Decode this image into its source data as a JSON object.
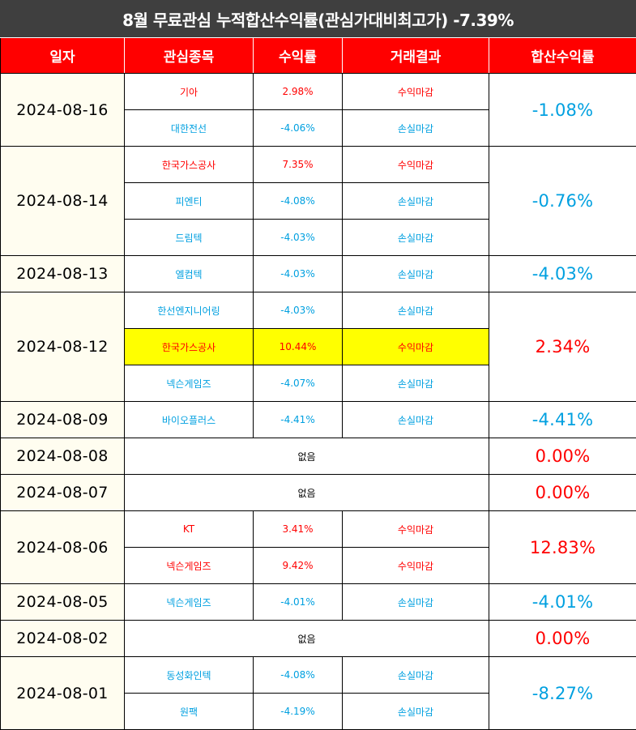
{
  "title": "8월 무료관심 누적합산수익률(관심가대비최고가) -7.39%",
  "headers": [
    "일자",
    "관심종목",
    "수익률",
    "거래결과",
    "합산수익률"
  ],
  "colors": {
    "profit": "#ff0000",
    "loss": "#00a0e0",
    "header_bg": "#ff0000",
    "title_bg": "#3f3f3f",
    "highlight": "#ffff00"
  },
  "groups": [
    {
      "date": "2024-08-16",
      "total": "-1.08%",
      "total_color": "blue",
      "rows": [
        {
          "stock": "기아",
          "rate": "2.98%",
          "result": "수익마감",
          "color": "red"
        },
        {
          "stock": "대한전선",
          "rate": "-4.06%",
          "result": "손실마감",
          "color": "blue"
        }
      ]
    },
    {
      "date": "2024-08-14",
      "total": "-0.76%",
      "total_color": "blue",
      "rows": [
        {
          "stock": "한국가스공사",
          "rate": "7.35%",
          "result": "수익마감",
          "color": "red"
        },
        {
          "stock": "피엔티",
          "rate": "-4.08%",
          "result": "손실마감",
          "color": "blue"
        },
        {
          "stock": "드림텍",
          "rate": "-4.03%",
          "result": "손실마감",
          "color": "blue"
        }
      ]
    },
    {
      "date": "2024-08-13",
      "total": "-4.03%",
      "total_color": "blue",
      "rows": [
        {
          "stock": "엘컴텍",
          "rate": "-4.03%",
          "result": "손실마감",
          "color": "blue"
        }
      ]
    },
    {
      "date": "2024-08-12",
      "total": "2.34%",
      "total_color": "red",
      "rows": [
        {
          "stock": "한선엔지니어링",
          "rate": "-4.03%",
          "result": "손실마감",
          "color": "blue"
        },
        {
          "stock": "한국가스공사",
          "rate": "10.44%",
          "result": "수익마감",
          "color": "red",
          "highlight": true
        },
        {
          "stock": "넥슨게임즈",
          "rate": "-4.07%",
          "result": "손실마감",
          "color": "blue"
        }
      ]
    },
    {
      "date": "2024-08-09",
      "total": "-4.41%",
      "total_color": "blue",
      "rows": [
        {
          "stock": "바이오플러스",
          "rate": "-4.41%",
          "result": "손실마감",
          "color": "blue"
        }
      ]
    },
    {
      "date": "2024-08-08",
      "total": "0.00%",
      "total_color": "red",
      "none": "없음",
      "rows": []
    },
    {
      "date": "2024-08-07",
      "total": "0.00%",
      "total_color": "red",
      "none": "없음",
      "rows": []
    },
    {
      "date": "2024-08-06",
      "total": "12.83%",
      "total_color": "red",
      "rows": [
        {
          "stock": "KT",
          "rate": "3.41%",
          "result": "수익마감",
          "color": "red"
        },
        {
          "stock": "넥슨게임즈",
          "rate": "9.42%",
          "result": "수익마감",
          "color": "red"
        }
      ]
    },
    {
      "date": "2024-08-05",
      "total": "-4.01%",
      "total_color": "blue",
      "rows": [
        {
          "stock": "넥슨게임즈",
          "rate": "-4.01%",
          "result": "손실마감",
          "color": "blue"
        }
      ]
    },
    {
      "date": "2024-08-02",
      "total": "0.00%",
      "total_color": "red",
      "none": "없음",
      "rows": []
    },
    {
      "date": "2024-08-01",
      "total": "-8.27%",
      "total_color": "blue",
      "rows": [
        {
          "stock": "동성화인텍",
          "rate": "-4.08%",
          "result": "손실마감",
          "color": "blue"
        },
        {
          "stock": "원팩",
          "rate": "-4.19%",
          "result": "손실마감",
          "color": "blue"
        }
      ]
    }
  ]
}
